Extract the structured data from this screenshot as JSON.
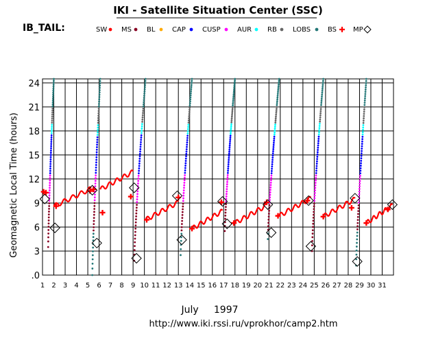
{
  "chart_data": {
    "type": "scatter",
    "title": "IKI - Satellite Situation Center (SSC)",
    "panel_label": "IB_TAIL:",
    "ylabel": "Geomagnetic  Local  Time  (hours)",
    "xlabel": "July     1997",
    "footer": "http://www.iki.rssi.ru/vprokhor/camp2.htm",
    "xlim": [
      1,
      32
    ],
    "ylim": [
      0,
      24.5
    ],
    "x_ticks": [
      1,
      2,
      3,
      4,
      5,
      6,
      7,
      8,
      9,
      10,
      11,
      12,
      13,
      14,
      15,
      16,
      17,
      18,
      19,
      20,
      21,
      22,
      23,
      24,
      25,
      26,
      27,
      28,
      29,
      30,
      31
    ],
    "y_ticks": [
      0,
      3,
      6,
      9,
      12,
      15,
      18,
      21,
      24
    ],
    "y_tick_labels": [
      ".0",
      "3",
      "6",
      "9",
      "12",
      "15",
      "18",
      "21",
      "24"
    ],
    "grid": true,
    "legend_position": "top",
    "legend": [
      {
        "label": "SW",
        "color": "#ff0000",
        "marker": "dot"
      },
      {
        "label": "MS",
        "color": "#880022",
        "marker": "dot"
      },
      {
        "label": "BL",
        "color": "#ffaa00",
        "marker": "dot"
      },
      {
        "label": "CAP",
        "color": "#0000ff",
        "marker": "dot"
      },
      {
        "label": "CUSP",
        "color": "#ff00ff",
        "marker": "dot"
      },
      {
        "label": "AUR",
        "color": "#00ffff",
        "marker": "dot"
      },
      {
        "label": "RB",
        "color": "#666666",
        "marker": "dot"
      },
      {
        "label": "LOBS",
        "color": "#227777",
        "marker": "dot"
      },
      {
        "label": "BS",
        "color": "#ff0000",
        "marker": "cross"
      },
      {
        "label": "MP",
        "color": "#000000",
        "marker": "diamond"
      }
    ],
    "colors": {
      "SW": "#ff0000",
      "MS": "#880022",
      "BL": "#ffaa00",
      "CAP": "#0000ff",
      "CUSP": "#ff00ff",
      "AUR": "#00ffff",
      "RB": "#666666",
      "LOBS": "#227777",
      "BS": "#ff0000",
      "MP": "#000000"
    },
    "orbits": [
      {
        "start": 1.0,
        "rise_start": 1.5,
        "rise_end": 2.0,
        "low": 3.5,
        "top_x": 2.0,
        "sw_end": 5.3
      },
      {
        "start": 5.3,
        "rise_start": 5.4,
        "rise_end": 6.1,
        "low": 0.0,
        "top_x": 6.1,
        "sw_end": 9.0
      },
      {
        "start": 9.0,
        "rise_start": 9.1,
        "rise_end": 10.1,
        "low": 1.8,
        "top_x": 10.1,
        "sw_end": 13.0
      },
      {
        "start": 13.0,
        "rise_start": 13.2,
        "rise_end": 14.2,
        "low": 2.5,
        "top_x": 14.2,
        "sw_end": 16.9
      },
      {
        "start": 16.9,
        "rise_start": 17.1,
        "rise_end": 18.0,
        "low": 5.5,
        "top_x": 18.0,
        "sw_end": 20.8
      },
      {
        "start": 20.8,
        "rise_start": 20.9,
        "rise_end": 21.9,
        "low": 4.5,
        "top_x": 21.9,
        "sw_end": 24.7
      },
      {
        "start": 24.7,
        "rise_start": 24.8,
        "rise_end": 25.8,
        "low": 3.0,
        "top_x": 25.8,
        "sw_end": 28.6
      },
      {
        "start": 28.6,
        "rise_start": 28.7,
        "rise_end": 29.6,
        "low": 1.2,
        "top_x": 29.6,
        "sw_end": 31.9
      }
    ],
    "bow_shock_crossings": [
      {
        "x": 1.1,
        "y": 10.4
      },
      {
        "x": 1.3,
        "y": 10.3
      },
      {
        "x": 2.2,
        "y": 8.6
      },
      {
        "x": 5.2,
        "y": 10.5
      },
      {
        "x": 5.5,
        "y": 10.7
      },
      {
        "x": 6.3,
        "y": 7.8
      },
      {
        "x": 8.8,
        "y": 9.8
      },
      {
        "x": 10.2,
        "y": 6.9
      },
      {
        "x": 13.0,
        "y": 9.7
      },
      {
        "x": 14.2,
        "y": 5.8
      },
      {
        "x": 16.8,
        "y": 9.1
      },
      {
        "x": 17.9,
        "y": 6.5
      },
      {
        "x": 20.8,
        "y": 9.1
      },
      {
        "x": 21.8,
        "y": 7.4
      },
      {
        "x": 24.4,
        "y": 9.3
      },
      {
        "x": 25.8,
        "y": 7.3
      },
      {
        "x": 28.3,
        "y": 8.4
      },
      {
        "x": 29.6,
        "y": 6.5
      },
      {
        "x": 31.5,
        "y": 8.2
      }
    ],
    "magnetopause_crossings": [
      {
        "x": 1.2,
        "y": 9.5
      },
      {
        "x": 2.1,
        "y": 5.9
      },
      {
        "x": 5.4,
        "y": 10.6
      },
      {
        "x": 5.8,
        "y": 4.0
      },
      {
        "x": 9.1,
        "y": 10.9
      },
      {
        "x": 9.3,
        "y": 2.1
      },
      {
        "x": 12.9,
        "y": 9.9
      },
      {
        "x": 13.3,
        "y": 4.4
      },
      {
        "x": 16.9,
        "y": 9.2
      },
      {
        "x": 17.3,
        "y": 6.4
      },
      {
        "x": 20.9,
        "y": 8.8
      },
      {
        "x": 21.2,
        "y": 5.3
      },
      {
        "x": 24.5,
        "y": 9.3
      },
      {
        "x": 24.7,
        "y": 3.6
      },
      {
        "x": 28.6,
        "y": 9.6
      },
      {
        "x": 28.8,
        "y": 1.7
      },
      {
        "x": 31.9,
        "y": 8.8
      }
    ]
  }
}
